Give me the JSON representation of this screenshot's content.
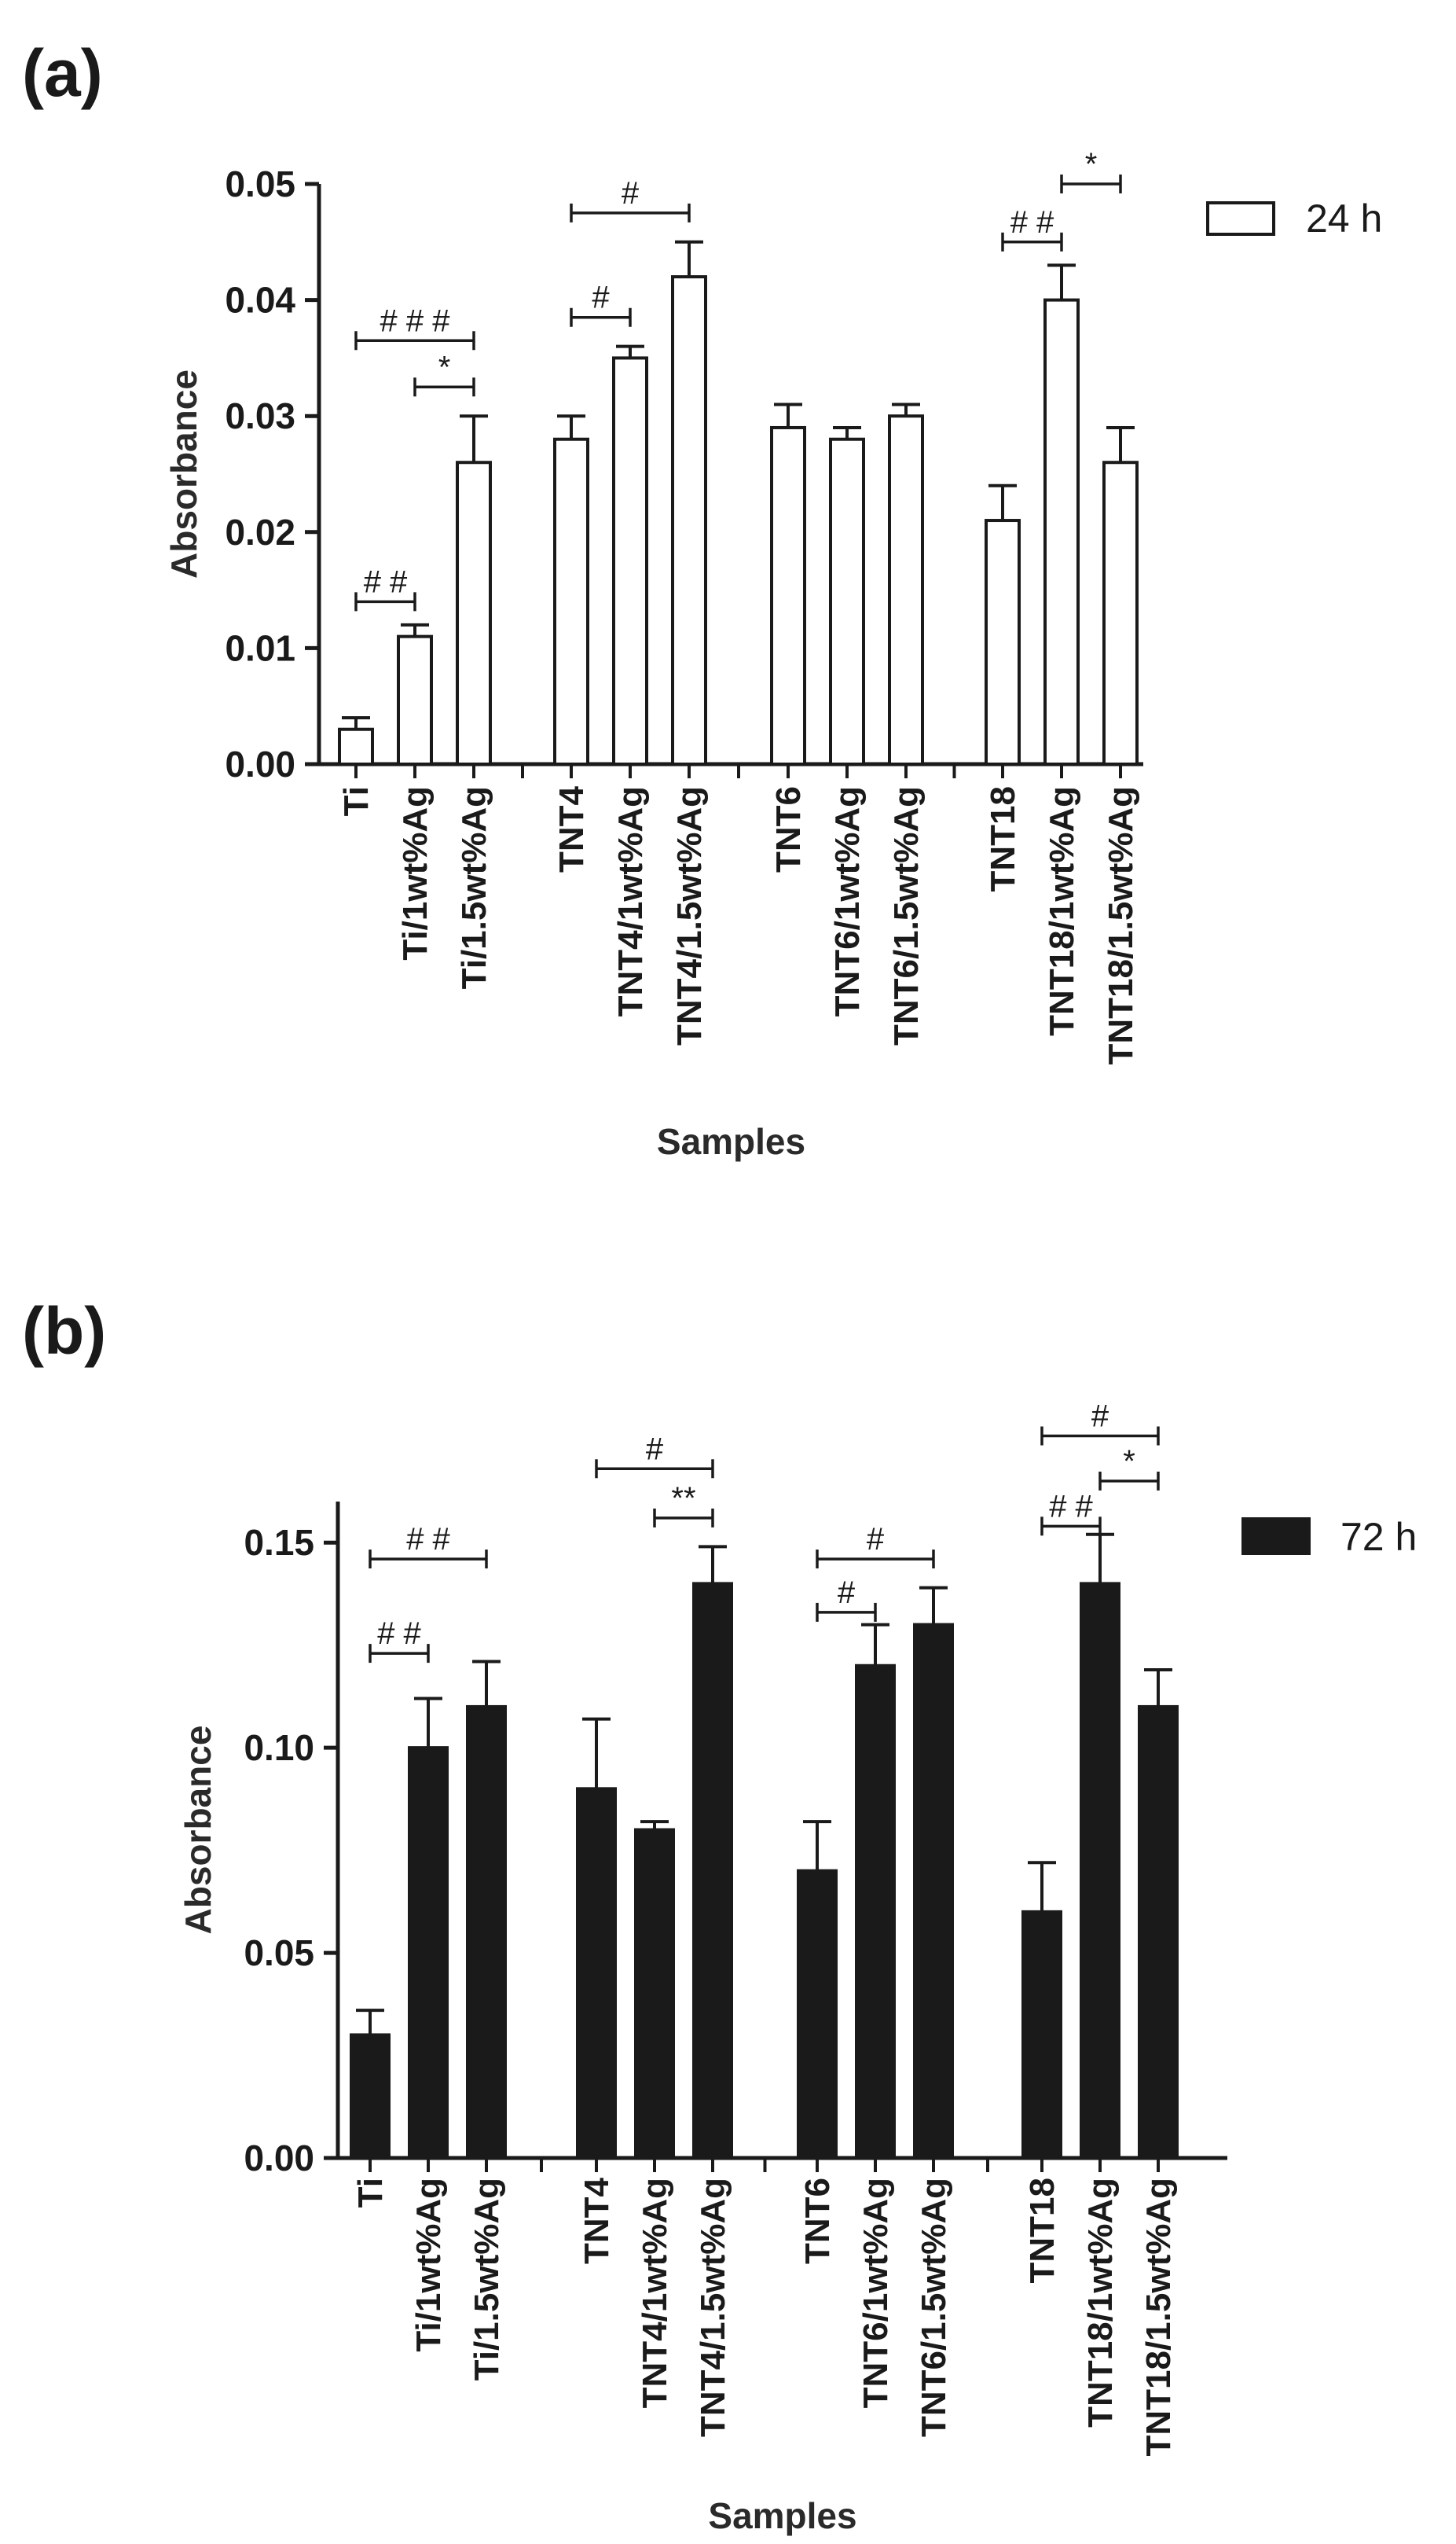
{
  "chart_data": [
    {
      "type": "bar",
      "panel_label": "(a)",
      "ylabel": "Absorbance",
      "xlabel": "Samples",
      "ylim": [
        0,
        0.05
      ],
      "yticks": [
        0,
        0.01,
        0.02,
        0.03,
        0.04,
        0.05
      ],
      "ytick_labels": [
        "0.00",
        "0.01",
        "0.02",
        "0.03",
        "0.04",
        "0.05"
      ],
      "categories": [
        "Ti",
        "Ti/1wt%Ag",
        "Ti/1.5wt%Ag",
        "TNT4",
        "TNT4/1wt%Ag",
        "TNT4/1.5wt%Ag",
        "TNT6",
        "TNT6/1wt%Ag",
        "TNT6/1.5wt%Ag",
        "TNT18",
        "TNT18/1wt%Ag",
        "TNT18/1.5wt%Ag"
      ],
      "series": [
        {
          "name": "24 h",
          "color": "#ffffff",
          "values": [
            0.003,
            0.011,
            0.026,
            0.028,
            0.035,
            0.042,
            0.029,
            0.028,
            0.03,
            0.021,
            0.04,
            0.026
          ],
          "errors": [
            0.001,
            0.001,
            0.004,
            0.002,
            0.001,
            0.003,
            0.002,
            0.001,
            0.001,
            0.003,
            0.003,
            0.003
          ]
        }
      ],
      "legend": {
        "label": "24 h",
        "placement": "top-right"
      },
      "annotations": [
        {
          "label": "# # #",
          "from": 0,
          "to": 2,
          "level": 0.0365
        },
        {
          "label": "*",
          "from": 1,
          "to": 2,
          "level": 0.0325
        },
        {
          "label": "# #",
          "from": 0,
          "to": 1,
          "level": 0.014
        },
        {
          "label": "#",
          "from": 3,
          "to": 5,
          "level": 0.0475
        },
        {
          "label": "#",
          "from": 3,
          "to": 4,
          "level": 0.0385
        },
        {
          "label": "# #",
          "from": 9,
          "to": 10,
          "level": 0.045
        },
        {
          "label": "*",
          "from": 10,
          "to": 11,
          "level": 0.05
        }
      ]
    },
    {
      "type": "bar",
      "panel_label": "(b)",
      "ylabel": "Absorbance",
      "xlabel": "Samples",
      "ylim": [
        0,
        0.16
      ],
      "yticks": [
        0,
        0.05,
        0.1,
        0.15
      ],
      "ytick_labels": [
        "0.00",
        "0.05",
        "0.10",
        "0.15"
      ],
      "categories": [
        "Ti",
        "Ti/1wt%Ag",
        "Ti/1.5wt%Ag",
        "TNT4",
        "TNT4/1wt%Ag",
        "TNT4/1.5wt%Ag",
        "TNT6",
        "TNT6/1wt%Ag",
        "TNT6/1.5wt%Ag",
        "TNT18",
        "TNT18/1wt%Ag",
        "TNT18/1.5wt%Ag"
      ],
      "series": [
        {
          "name": "72 h",
          "color": "#1a1a1a",
          "values": [
            0.03,
            0.1,
            0.11,
            0.09,
            0.08,
            0.14,
            0.07,
            0.12,
            0.13,
            0.06,
            0.14,
            0.11
          ],
          "errors": [
            0.006,
            0.012,
            0.011,
            0.017,
            0.002,
            0.009,
            0.012,
            0.01,
            0.009,
            0.012,
            0.012,
            0.009
          ]
        }
      ],
      "legend": {
        "label": "72 h",
        "placement": "top-right"
      },
      "annotations": [
        {
          "label": "# #",
          "from": 0,
          "to": 2,
          "level": 0.146
        },
        {
          "label": "# #",
          "from": 0,
          "to": 1,
          "level": 0.123
        },
        {
          "label": "#",
          "from": 3,
          "to": 5,
          "level": 0.168
        },
        {
          "label": "**",
          "from": 4,
          "to": 5,
          "level": 0.156
        },
        {
          "label": "#",
          "from": 6,
          "to": 8,
          "level": 0.146
        },
        {
          "label": "#",
          "from": 6,
          "to": 7,
          "level": 0.133
        },
        {
          "label": "#",
          "from": 9,
          "to": 11,
          "level": 0.176
        },
        {
          "label": "*",
          "from": 10,
          "to": 11,
          "level": 0.165
        },
        {
          "label": "# #",
          "from": 9,
          "to": 10,
          "level": 0.154
        }
      ]
    }
  ]
}
